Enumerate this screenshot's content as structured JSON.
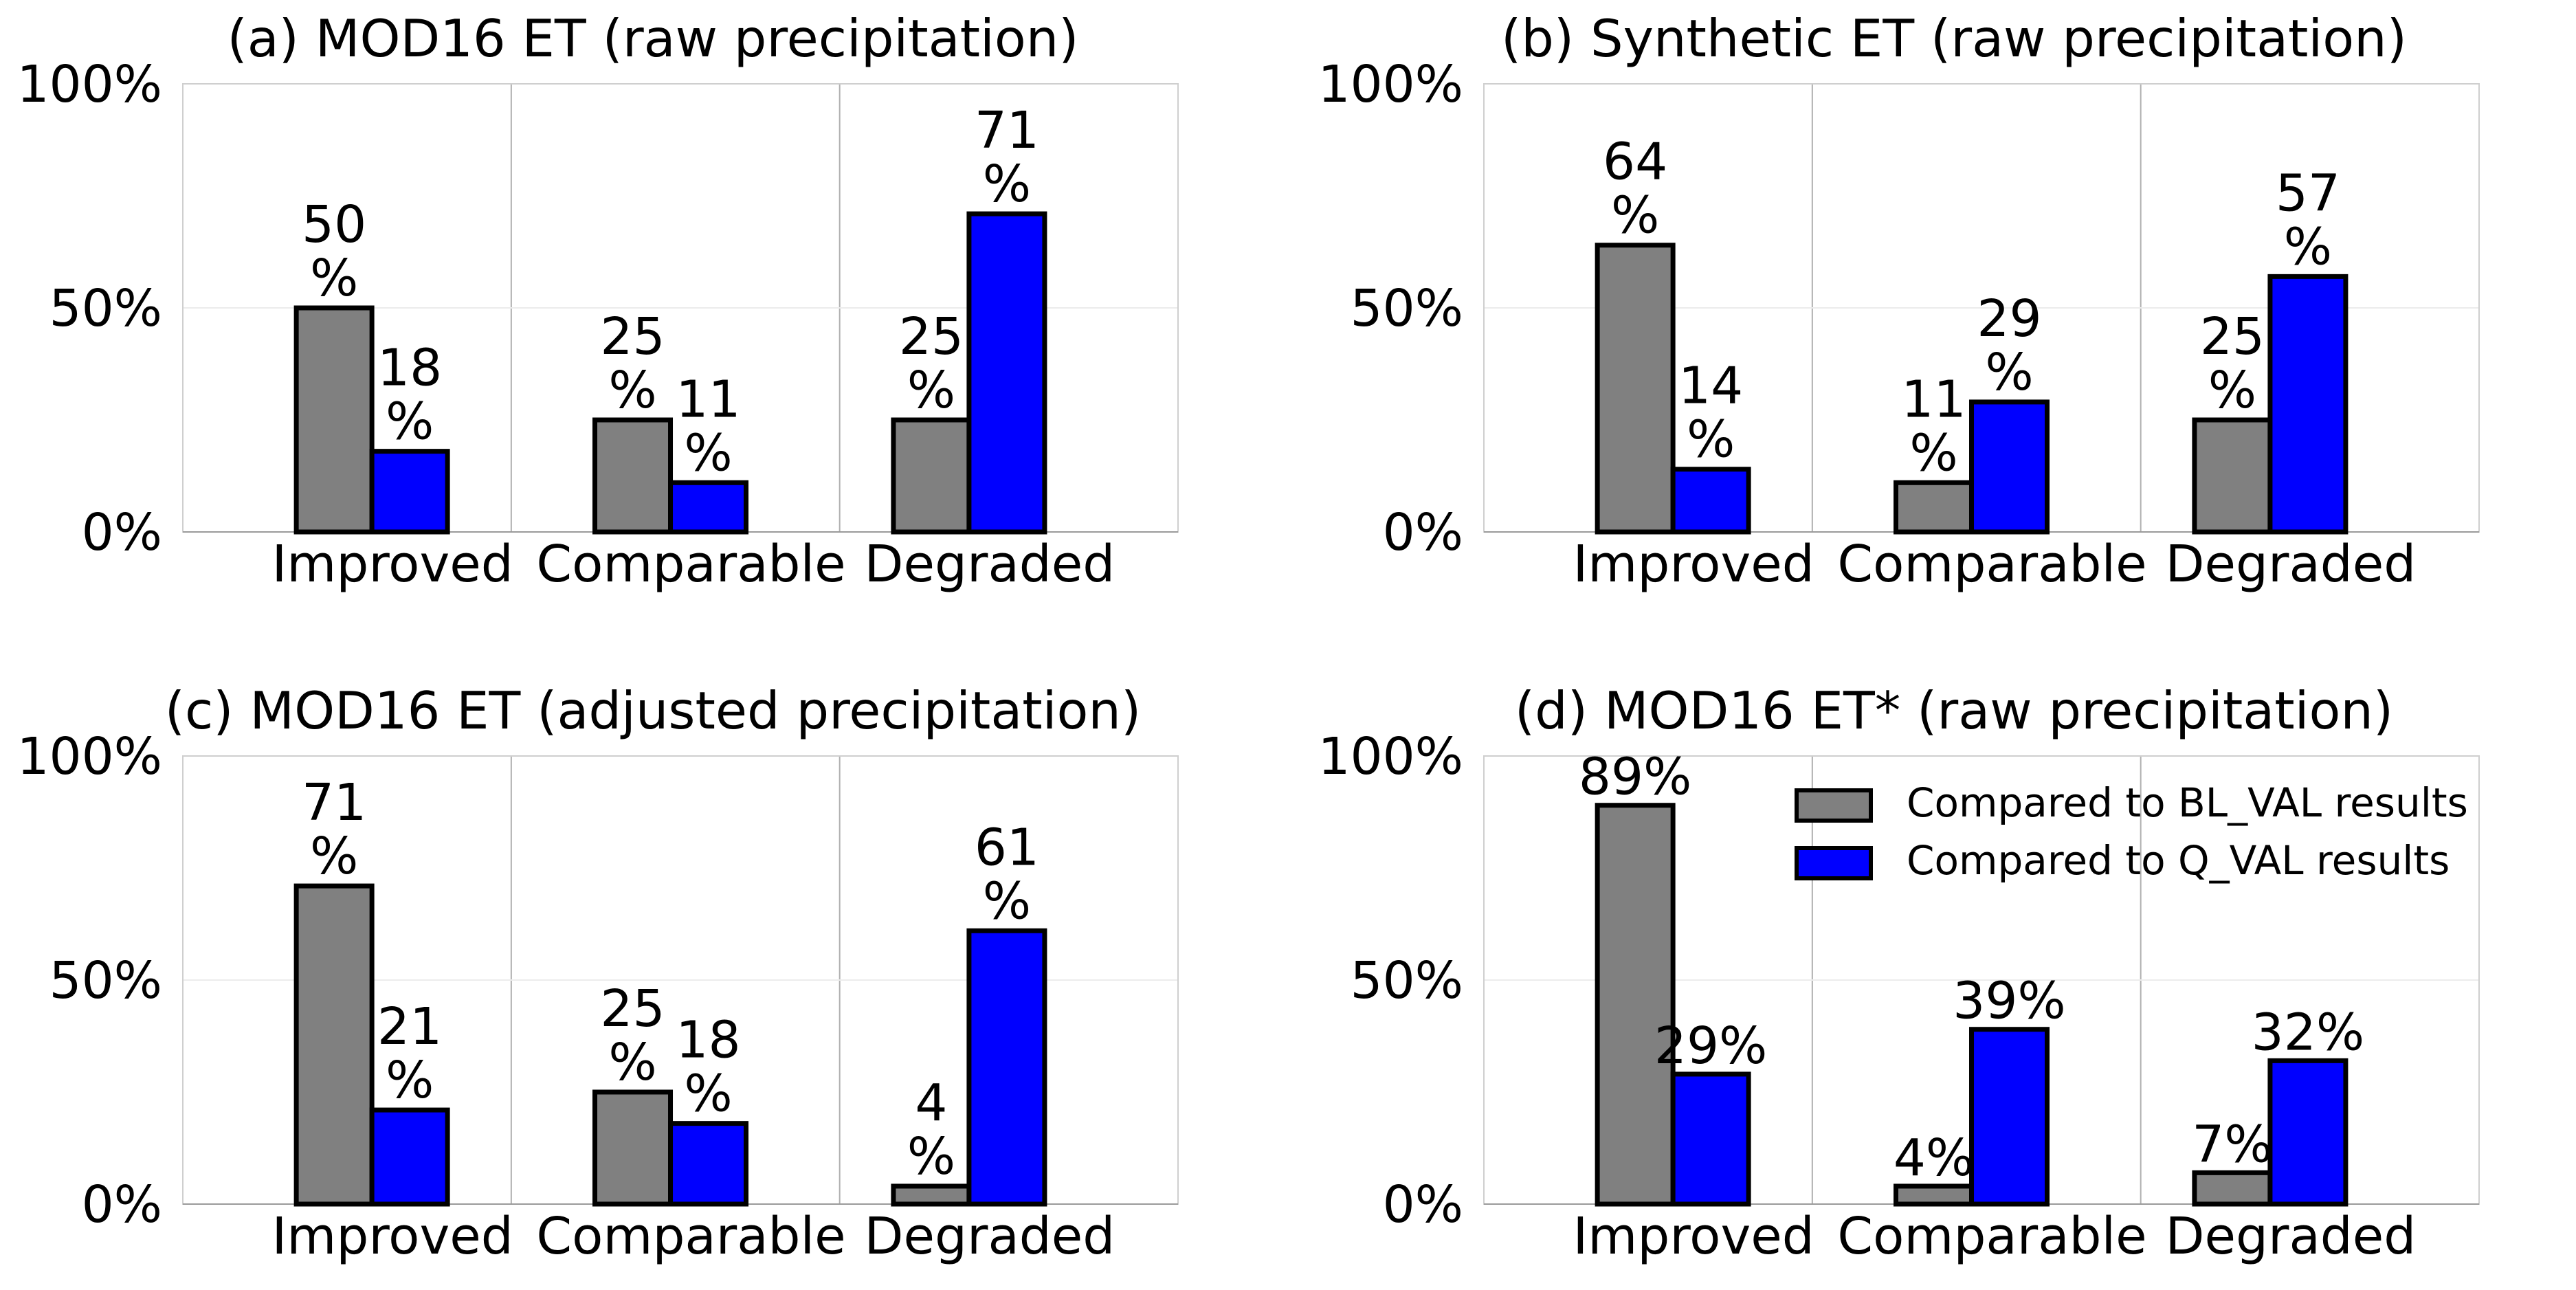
{
  "colors": {
    "bl": "#808080",
    "q": "#0000ff",
    "edge": "#000000",
    "grid": "#b0b0b0"
  },
  "legend": {
    "entries": [
      "Compared to BL_VAL results",
      "Compared to Q_VAL results"
    ]
  },
  "chart_data": [
    {
      "type": "bar",
      "title": "(a) MOD16 ET (raw precipitation)",
      "categories": [
        "Improved",
        "Comparable",
        "Degraded"
      ],
      "yticks": [
        "0%",
        "50%",
        "100%"
      ],
      "ylim": [
        0,
        100
      ],
      "series": [
        {
          "name": "Compared to BL_VAL results",
          "values": [
            50,
            25,
            25
          ],
          "labels": [
            [
              "50",
              "%"
            ],
            [
              "25",
              "%"
            ],
            [
              "25",
              "%"
            ]
          ]
        },
        {
          "name": "Compared to Q_VAL results",
          "values": [
            18,
            11,
            71
          ],
          "labels": [
            [
              "18",
              "%"
            ],
            [
              "11",
              "%"
            ],
            [
              "71",
              "%"
            ]
          ]
        }
      ]
    },
    {
      "type": "bar",
      "title": "(b) Synthetic ET (raw precipitation)",
      "categories": [
        "Improved",
        "Comparable",
        "Degraded"
      ],
      "yticks": [
        "0%",
        "50%",
        "100%"
      ],
      "ylim": [
        0,
        100
      ],
      "series": [
        {
          "name": "Compared to BL_VAL results",
          "values": [
            64,
            11,
            25
          ],
          "labels": [
            [
              "64",
              "%"
            ],
            [
              "11",
              "%"
            ],
            [
              "25",
              "%"
            ]
          ]
        },
        {
          "name": "Compared to Q_VAL results",
          "values": [
            14,
            29,
            57
          ],
          "labels": [
            [
              "14",
              "%"
            ],
            [
              "29",
              "%"
            ],
            [
              "57",
              "%"
            ]
          ]
        }
      ]
    },
    {
      "type": "bar",
      "title": "(c) MOD16 ET (adjusted precipitation)",
      "categories": [
        "Improved",
        "Comparable",
        "Degraded"
      ],
      "yticks": [
        "0%",
        "50%",
        "100%"
      ],
      "ylim": [
        0,
        100
      ],
      "series": [
        {
          "name": "Compared to BL_VAL results",
          "values": [
            71,
            25,
            4
          ],
          "labels": [
            [
              "71",
              "%"
            ],
            [
              "25",
              "%"
            ],
            [
              "4",
              "%"
            ]
          ]
        },
        {
          "name": "Compared to Q_VAL results",
          "values": [
            21,
            18,
            61
          ],
          "labels": [
            [
              "21",
              "%"
            ],
            [
              "18",
              "%"
            ],
            [
              "61",
              "%"
            ]
          ]
        }
      ]
    },
    {
      "type": "bar",
      "title": "(d) MOD16 ET* (raw precipitation)",
      "categories": [
        "Improved",
        "Comparable",
        "Degraded"
      ],
      "yticks": [
        "0%",
        "50%",
        "100%"
      ],
      "ylim": [
        0,
        100
      ],
      "legend_position": "top-right",
      "series": [
        {
          "name": "Compared to BL_VAL results",
          "values": [
            89,
            4,
            7
          ],
          "labels": [
            [
              "89%"
            ],
            [
              "4%"
            ],
            [
              "7%"
            ]
          ]
        },
        {
          "name": "Compared to Q_VAL results",
          "values": [
            29,
            39,
            32
          ],
          "labels": [
            [
              "29%"
            ],
            [
              "39%"
            ],
            [
              "32%"
            ]
          ]
        }
      ]
    }
  ]
}
